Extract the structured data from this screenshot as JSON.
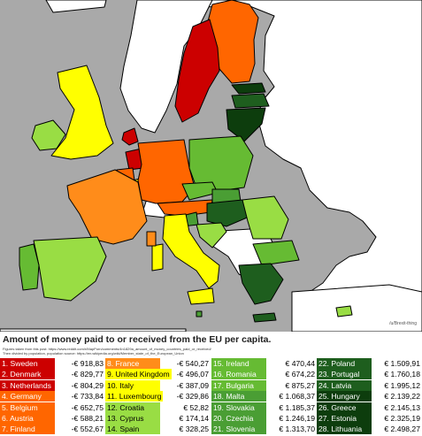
{
  "map": {
    "title": "Amount of money paid to or received from the EU per capita.",
    "source_line_1": "Figures taken from this post: https://www.reddit.com/r/MapPorn/comments/4n1829a_amount_of_money_countries_paid_or_received/",
    "source_line_2": "Then divided by population, population source: https://en.wikipedia.org/wiki/Member_state_of_the_European_Union",
    "credit": "/u/Brexit-thing",
    "colors": {
      "sea": "#a9a9a9",
      "non_eu": "#ffffff",
      "border": "#000000",
      "dark_red": "#cc0000",
      "orange": "#ff6600",
      "light_orange": "#ff8c1a",
      "yellow": "#ffff00",
      "light_green": "#99dd44",
      "green": "#66bb33",
      "medium_green": "#4a9e34",
      "dark_green": "#1e5e1e",
      "darkest_green": "#0d3d0d"
    }
  },
  "legend": {
    "columns": [
      [
        {
          "name": "1. Sweden",
          "value": "-€ 918,83",
          "color": "#cc0000",
          "text": "#ffffff"
        },
        {
          "name": "2. Denmark",
          "value": "-€ 829,77",
          "color": "#cc0000",
          "text": "#ffffff"
        },
        {
          "name": "3. Netherlands",
          "value": "-€ 804,29",
          "color": "#cc0000",
          "text": "#ffffff"
        },
        {
          "name": "4. Germany",
          "value": "-€ 733,84",
          "color": "#ff6600",
          "text": "#ffffff"
        },
        {
          "name": "5. Belgium",
          "value": "-€ 652,75",
          "color": "#ff6600",
          "text": "#ffffff"
        },
        {
          "name": "6. Austria",
          "value": "-€ 588,21",
          "color": "#ff6600",
          "text": "#ffffff"
        },
        {
          "name": "7. Finland",
          "value": "-€ 552,67",
          "color": "#ff6600",
          "text": "#ffffff"
        }
      ],
      [
        {
          "name": "8. France",
          "value": "-€ 540,27",
          "color": "#ff8c1a",
          "text": "#ffffff"
        },
        {
          "name": "9. United Kingdom",
          "value": "-€ 496,07",
          "color": "#ffff00",
          "text": "#000000"
        },
        {
          "name": "10. Italy",
          "value": "-€ 387,09",
          "color": "#ffff00",
          "text": "#000000"
        },
        {
          "name": "11. Luxembourg",
          "value": "-€ 329,86",
          "color": "#ffff00",
          "text": "#000000"
        },
        {
          "name": "12. Croatia",
          "value": "€ 52,82",
          "color": "#99dd44",
          "text": "#000000"
        },
        {
          "name": "13. Cyprus",
          "value": "€ 174,14",
          "color": "#99dd44",
          "text": "#000000"
        },
        {
          "name": "14. Spain",
          "value": "€ 328,25",
          "color": "#99dd44",
          "text": "#000000"
        }
      ],
      [
        {
          "name": "15. Ireland",
          "value": "€ 470,44",
          "color": "#66bb33",
          "text": "#ffffff"
        },
        {
          "name": "16. Romania",
          "value": "€ 674,22",
          "color": "#66bb33",
          "text": "#ffffff"
        },
        {
          "name": "17. Bulgaria",
          "value": "€ 875,27",
          "color": "#66bb33",
          "text": "#ffffff"
        },
        {
          "name": "18. Malta",
          "value": "€ 1.068,37",
          "color": "#4a9e34",
          "text": "#ffffff"
        },
        {
          "name": "19. Slovakia",
          "value": "€ 1.185,37",
          "color": "#4a9e34",
          "text": "#ffffff"
        },
        {
          "name": "20. Czechia",
          "value": "€ 1.246,19",
          "color": "#4a9e34",
          "text": "#ffffff"
        },
        {
          "name": "21. Slovenia",
          "value": "€ 1.313,70",
          "color": "#4a9e34",
          "text": "#ffffff"
        }
      ],
      [
        {
          "name": "22. Poland",
          "value": "€ 1.509,91",
          "color": "#1e5e1e",
          "text": "#ffffff"
        },
        {
          "name": "23. Portugal",
          "value": "€ 1.760,18",
          "color": "#1e5e1e",
          "text": "#ffffff"
        },
        {
          "name": "24. Latvia",
          "value": "€ 1.995,12",
          "color": "#1e5e1e",
          "text": "#ffffff"
        },
        {
          "name": "25. Hungary",
          "value": "€ 2.139,22",
          "color": "#0d3d0d",
          "text": "#ffffff"
        },
        {
          "name": "26. Greece",
          "value": "€ 2.145,13",
          "color": "#0d3d0d",
          "text": "#ffffff"
        },
        {
          "name": "27. Estonia",
          "value": "€ 2.325,19",
          "color": "#0d3d0d",
          "text": "#ffffff"
        },
        {
          "name": "28. Lithuania",
          "value": "€ 2.498,27",
          "color": "#0d3d0d",
          "text": "#ffffff"
        }
      ]
    ]
  }
}
